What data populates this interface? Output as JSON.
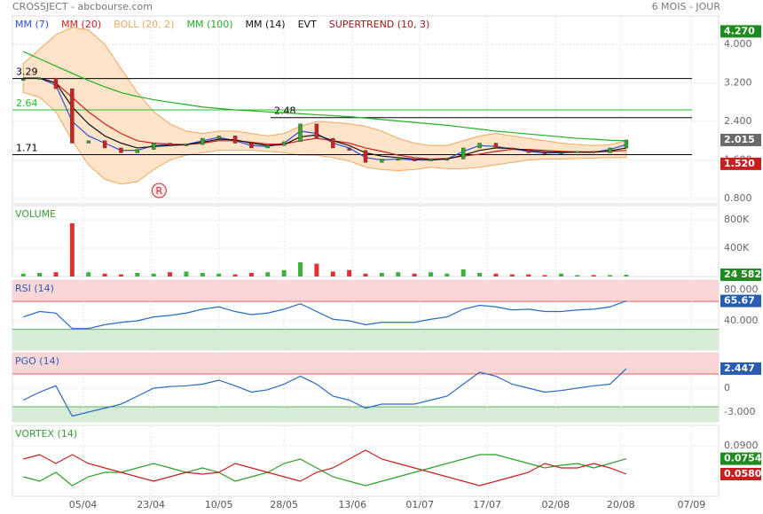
{
  "header": {
    "title": "CROSSJECT - abcbourse.com",
    "period": "6 MOIS - JOUR"
  },
  "xaxis": {
    "xlim": [
      0,
      130
    ],
    "xticks": [
      {
        "value": 13,
        "label": "05/04"
      },
      {
        "value": 25.5,
        "label": "23/04"
      },
      {
        "value": 38,
        "label": "10/05"
      },
      {
        "value": 50,
        "label": "28/05"
      },
      {
        "value": 62.6,
        "label": "13/06"
      },
      {
        "value": 75,
        "label": "01/07"
      },
      {
        "value": 87.4,
        "label": "17/07"
      },
      {
        "value": 100,
        "label": "02/08"
      },
      {
        "value": 112,
        "label": "20/08"
      },
      {
        "value": 125,
        "label": "07/09"
      }
    ],
    "x": [
      2,
      5,
      8,
      11,
      14,
      17,
      20,
      23,
      26,
      29,
      32,
      35,
      38,
      41,
      44,
      47,
      50,
      53,
      56,
      59,
      62,
      65,
      68,
      71,
      74,
      77,
      80,
      83,
      86,
      89,
      92,
      95,
      98,
      101,
      104,
      107,
      110,
      113
    ]
  },
  "chart_data": [
    {
      "type": "price",
      "ylim": [
        0.69,
        4.59
      ],
      "yticks": [
        {
          "value": 4,
          "label": "4.000"
        },
        {
          "value": 3.2,
          "label": "3.200"
        },
        {
          "value": 2.4,
          "label": "2.400"
        },
        {
          "value": 1.6,
          "label": "1.600"
        },
        {
          "value": 0.8,
          "label": "0.800"
        }
      ],
      "up_color": "#2fa82f",
      "down_color": "#d02020",
      "close": [
        3.28,
        3.3,
        3.08,
        1.95,
        2.0,
        1.85,
        1.75,
        1.82,
        1.95,
        1.9,
        1.92,
        2.05,
        2.1,
        1.95,
        1.85,
        1.9,
        1.98,
        2.35,
        2.05,
        1.85,
        1.8,
        1.55,
        1.62,
        1.62,
        1.58,
        1.62,
        1.62,
        1.85,
        1.95,
        1.85,
        1.82,
        1.75,
        1.73,
        1.75,
        1.78,
        1.75,
        1.85,
        2.015
      ],
      "series": [
        {
          "name": "MM (7)",
          "color": "#2d4fd6",
          "values": [
            3.3,
            3.3,
            3.15,
            2.4,
            2.1,
            1.95,
            1.8,
            1.8,
            1.9,
            1.92,
            1.92,
            2.0,
            2.07,
            2.0,
            1.9,
            1.88,
            1.95,
            2.2,
            2.15,
            1.95,
            1.85,
            1.65,
            1.6,
            1.62,
            1.6,
            1.6,
            1.62,
            1.78,
            1.9,
            1.88,
            1.83,
            1.78,
            1.74,
            1.75,
            1.77,
            1.76,
            1.82,
            1.92
          ]
        },
        {
          "name": "MM (20)",
          "color": "#c81e1e",
          "values": [
            3.3,
            3.3,
            3.2,
            2.9,
            2.6,
            2.35,
            2.15,
            2.0,
            1.95,
            1.93,
            1.92,
            1.95,
            2.0,
            2.0,
            1.97,
            1.93,
            1.93,
            2.0,
            2.05,
            2.0,
            1.95,
            1.85,
            1.78,
            1.7,
            1.65,
            1.62,
            1.63,
            1.68,
            1.72,
            1.78,
            1.82,
            1.82,
            1.8,
            1.78,
            1.77,
            1.77,
            1.78,
            1.8
          ]
        },
        {
          "name": "BOLL (20, 2)",
          "color": "#f0a860",
          "fill": "#fde3c8",
          "upper": [
            3.6,
            3.9,
            4.2,
            4.35,
            4.3,
            4.0,
            3.5,
            3.0,
            2.6,
            2.35,
            2.2,
            2.15,
            2.2,
            2.2,
            2.15,
            2.1,
            2.15,
            2.3,
            2.4,
            2.38,
            2.35,
            2.3,
            2.2,
            2.05,
            1.95,
            1.9,
            1.9,
            2.0,
            2.1,
            2.15,
            2.1,
            2.05,
            2.0,
            1.95,
            1.92,
            1.9,
            1.92,
            2.0
          ],
          "lower": [
            3.0,
            2.9,
            2.6,
            2.0,
            1.5,
            1.2,
            1.1,
            1.15,
            1.4,
            1.6,
            1.7,
            1.75,
            1.8,
            1.8,
            1.8,
            1.78,
            1.75,
            1.7,
            1.7,
            1.65,
            1.58,
            1.45,
            1.4,
            1.38,
            1.4,
            1.45,
            1.42,
            1.42,
            1.45,
            1.5,
            1.55,
            1.6,
            1.62,
            1.62,
            1.63,
            1.64,
            1.65,
            1.65
          ]
        },
        {
          "name": "MM (100)",
          "color": "#22b022",
          "values": [
            3.85,
            3.7,
            3.55,
            3.4,
            3.25,
            3.12,
            3.0,
            2.92,
            2.85,
            2.8,
            2.75,
            2.7,
            2.67,
            2.64,
            2.62,
            2.6,
            2.58,
            2.56,
            2.54,
            2.52,
            2.5,
            2.47,
            2.44,
            2.41,
            2.38,
            2.35,
            2.32,
            2.28,
            2.24,
            2.2,
            2.17,
            2.14,
            2.11,
            2.08,
            2.05,
            2.03,
            2.01,
            2.0
          ]
        },
        {
          "name": "MM (14)",
          "color": "#111111",
          "values": [
            3.3,
            3.3,
            3.2,
            2.7,
            2.35,
            2.1,
            1.95,
            1.85,
            1.88,
            1.9,
            1.92,
            1.97,
            2.03,
            2.02,
            1.95,
            1.9,
            1.92,
            2.08,
            2.12,
            2.0,
            1.9,
            1.75,
            1.68,
            1.65,
            1.62,
            1.6,
            1.62,
            1.7,
            1.8,
            1.85,
            1.84,
            1.8,
            1.77,
            1.76,
            1.76,
            1.76,
            1.79,
            1.85
          ]
        },
        {
          "name": "EVT",
          "color": "#111111"
        },
        {
          "name": "SUPERTREND (10, 3)",
          "color": "#a01818"
        }
      ],
      "levels": [
        {
          "value": 3.29,
          "label": "3.29",
          "color": "#000000"
        },
        {
          "value": 2.64,
          "label": "2.64",
          "color": "#22c022"
        },
        {
          "value": 2.48,
          "label": "2.48",
          "color": "#000000"
        },
        {
          "value": 1.71,
          "label": "1.71",
          "color": "#000000"
        }
      ],
      "events": [
        {
          "x": 27,
          "label": "R"
        }
      ],
      "badges": [
        {
          "value": 4.27,
          "label": "4.270",
          "color": "#1f8a1f"
        },
        {
          "value": 2.015,
          "label": "2.015",
          "color": "#6a6a6a"
        },
        {
          "value": 1.52,
          "label": "1.520",
          "color": "#c81e1e"
        }
      ]
    },
    {
      "type": "bar",
      "title": "VOLUME",
      "title_color": "#3a9a3a",
      "ylim": [
        0,
        1000000
      ],
      "yticks": [
        {
          "value": 400000,
          "label": "400K"
        },
        {
          "value": 800000,
          "label": "800K"
        }
      ],
      "up_color": "#3cb43c",
      "down_color": "#e03030",
      "values": [
        40000,
        50000,
        60000,
        750000,
        60000,
        40000,
        30000,
        50000,
        40000,
        60000,
        70000,
        50000,
        40000,
        30000,
        50000,
        60000,
        90000,
        200000,
        180000,
        70000,
        90000,
        40000,
        50000,
        60000,
        40000,
        60000,
        40000,
        100000,
        50000,
        40000,
        30000,
        30000,
        20000,
        40000,
        20000,
        20000,
        20000,
        24582
      ],
      "badges": [
        {
          "value": 24582,
          "label": "24 582",
          "color": "#1f8a1f"
        }
      ]
    },
    {
      "type": "line",
      "title": "RSI (14)",
      "title_color": "#2a5db0",
      "ylim": [
        2.3,
        92.6
      ],
      "yticks": [
        {
          "value": 80,
          "label": "80.000"
        },
        {
          "value": 40,
          "label": "40.000"
        }
      ],
      "zones": [
        65,
        29
      ],
      "series": [
        {
          "color": "#2a6ac0",
          "values": [
            45,
            52,
            50,
            30,
            30,
            35,
            38,
            40,
            45,
            47,
            50,
            55,
            58,
            52,
            48,
            50,
            55,
            62,
            52,
            42,
            40,
            35,
            38,
            38,
            38,
            42,
            45,
            55,
            60,
            58,
            54,
            55,
            52,
            52,
            54,
            55,
            58,
            65.67
          ]
        }
      ],
      "badges": [
        {
          "value": 65.67,
          "label": "65.67",
          "color": "#2a5db0"
        }
      ]
    },
    {
      "type": "line",
      "title": "PGO (14)",
      "title_color": "#2a5db0",
      "ylim": [
        -4.22,
        4.44
      ],
      "yticks": [
        0,
        {
          "value": -3,
          "label": "-3.000"
        }
      ],
      "zones": [
        1.78,
        -2.33
      ],
      "series": [
        {
          "color": "#2a6ac0",
          "values": [
            -1.5,
            -0.5,
            0.3,
            -3.5,
            -3,
            -2.5,
            -2,
            -1,
            0,
            0.2,
            0.3,
            0.5,
            1,
            0.3,
            -0.5,
            -0.2,
            0.5,
            1.5,
            0.5,
            -1,
            -1.5,
            -2.5,
            -2,
            -2,
            -2,
            -1.5,
            -1,
            0.5,
            2,
            1.5,
            0.5,
            0,
            -0.5,
            -0.3,
            0,
            0.3,
            0.5,
            2.447
          ]
        }
      ],
      "badges": [
        {
          "value": 2.447,
          "label": "2.447",
          "color": "#2a5db0"
        }
      ]
    },
    {
      "type": "line",
      "title": "VORTEX (14)",
      "title_color": "#3a9a3a",
      "ylim": [
        0.033,
        0.113
      ],
      "yticks": [
        {
          "value": 0.09,
          "label": "0.0900"
        }
      ],
      "series": [
        {
          "color": "#2aa02a",
          "values": [
            0.055,
            0.05,
            0.06,
            0.045,
            0.055,
            0.06,
            0.06,
            0.065,
            0.07,
            0.065,
            0.06,
            0.065,
            0.06,
            0.05,
            0.055,
            0.06,
            0.07,
            0.075,
            0.065,
            0.055,
            0.05,
            0.045,
            0.05,
            0.055,
            0.06,
            0.065,
            0.07,
            0.075,
            0.08,
            0.08,
            0.075,
            0.07,
            0.065,
            0.068,
            0.07,
            0.065,
            0.07,
            0.0754
          ]
        },
        {
          "color": "#c81e1e",
          "values": [
            0.075,
            0.08,
            0.07,
            0.08,
            0.07,
            0.065,
            0.06,
            0.055,
            0.05,
            0.055,
            0.06,
            0.058,
            0.06,
            0.07,
            0.065,
            0.06,
            0.055,
            0.05,
            0.06,
            0.065,
            0.075,
            0.085,
            0.075,
            0.07,
            0.065,
            0.06,
            0.055,
            0.05,
            0.045,
            0.05,
            0.055,
            0.06,
            0.07,
            0.065,
            0.065,
            0.07,
            0.065,
            0.058
          ]
        }
      ],
      "badges": [
        {
          "value": 0.0754,
          "label": "0.0754",
          "color": "#1f8a1f"
        },
        {
          "value": 0.058,
          "label": "0.0580",
          "color": "#c81e1e"
        }
      ]
    }
  ]
}
